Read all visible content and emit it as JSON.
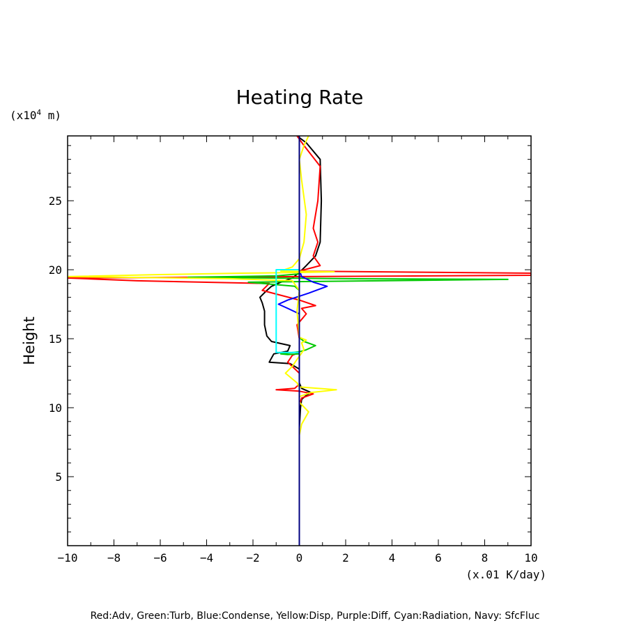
{
  "chart_data": {
    "type": "line",
    "title": "Heating Rate",
    "xlabel": "(x.01 K/day)",
    "ylabel": "Height",
    "yunit_prefix": "(x10",
    "yunit_exp": "4",
    "yunit_suffix": " m)",
    "xlim": [
      -10,
      10
    ],
    "ylim": [
      0,
      29.7
    ],
    "x_ticks": [
      -10,
      -8,
      -6,
      -4,
      -2,
      0,
      2,
      4,
      6,
      8,
      10
    ],
    "y_ticks": [
      5,
      10,
      15,
      20,
      25
    ],
    "x_tick_labels": [
      "−10",
      "−8",
      "−6",
      "−4",
      "−2",
      "0",
      "2",
      "4",
      "6",
      "8",
      "10"
    ],
    "y_tick_labels": [
      "5",
      "10",
      "15",
      "20",
      "25"
    ],
    "grid": false,
    "legend_text": "Red:Adv, Green:Turb, Blue:Condense, Yellow:Disp, Purple:Diff, Cyan:Radiation, Navy: SfcFluc",
    "series": [
      {
        "color": "#000000",
        "points": [
          [
            0,
            0
          ],
          [
            0,
            8.5
          ],
          [
            0.05,
            10
          ],
          [
            0.1,
            10.6
          ],
          [
            0.3,
            10.9
          ],
          [
            0.5,
            11.1
          ],
          [
            0.1,
            11.4
          ],
          [
            0,
            11.8
          ],
          [
            0,
            12.8
          ],
          [
            -0.4,
            13.2
          ],
          [
            -1.3,
            13.3
          ],
          [
            -1.1,
            13.9
          ],
          [
            -0.5,
            14.1
          ],
          [
            -0.4,
            14.5
          ],
          [
            -1.2,
            14.8
          ],
          [
            -1.4,
            15.2
          ],
          [
            -1.5,
            16
          ],
          [
            -1.5,
            17
          ],
          [
            -1.6,
            17.6
          ],
          [
            -1.7,
            18
          ],
          [
            -1.4,
            18.5
          ],
          [
            -1.2,
            18.8
          ],
          [
            -0.8,
            19.1
          ],
          [
            -0.3,
            19.4
          ],
          [
            0,
            19.8
          ],
          [
            0.3,
            20.3
          ],
          [
            0.7,
            21
          ],
          [
            0.9,
            22
          ],
          [
            0.95,
            25
          ],
          [
            0.9,
            28
          ],
          [
            0.3,
            29.2
          ],
          [
            -0.1,
            29.7
          ]
        ]
      },
      {
        "color": "#ff0000",
        "points": [
          [
            0,
            8.8
          ],
          [
            0,
            10.2
          ],
          [
            0.1,
            10.7
          ],
          [
            0.6,
            11.0
          ],
          [
            0,
            11.2
          ],
          [
            -1,
            11.3
          ],
          [
            -0.2,
            11.4
          ],
          [
            0,
            11.7
          ],
          [
            0,
            12.5
          ],
          [
            -0.5,
            13.3
          ],
          [
            -0.3,
            13.8
          ],
          [
            0,
            14
          ],
          [
            0,
            15
          ],
          [
            -0.1,
            16
          ],
          [
            0.3,
            16.8
          ],
          [
            0.1,
            17.2
          ],
          [
            0.7,
            17.4
          ],
          [
            0,
            17.8
          ],
          [
            -1.6,
            18.5
          ],
          [
            -1.3,
            19
          ],
          [
            -7,
            19.2
          ],
          [
            -10,
            19.4
          ],
          [
            0,
            19.5
          ],
          [
            10,
            19.6
          ],
          [
            10,
            19.75
          ],
          [
            0,
            19.9
          ],
          [
            0.9,
            20.3
          ],
          [
            0.6,
            21
          ],
          [
            0.8,
            22
          ],
          [
            0.6,
            23
          ],
          [
            0.8,
            25
          ],
          [
            0.9,
            27.5
          ],
          [
            0.2,
            29
          ],
          [
            -0.1,
            29.7
          ]
        ]
      },
      {
        "color": "#00c800",
        "points": [
          [
            0,
            13.9
          ],
          [
            -0.5,
            13.85
          ],
          [
            -0.8,
            13.9
          ],
          [
            0,
            14.05
          ],
          [
            0.3,
            14.2
          ],
          [
            0.7,
            14.5
          ],
          [
            0.2,
            14.8
          ],
          [
            0,
            15.1
          ],
          [
            0,
            18.5
          ],
          [
            -0.2,
            18.8
          ],
          [
            -2.2,
            19.1
          ],
          [
            3.5,
            19.2
          ],
          [
            9,
            19.3
          ],
          [
            2,
            19.35
          ],
          [
            -4.8,
            19.45
          ],
          [
            -1,
            19.55
          ],
          [
            0,
            19.7
          ],
          [
            0,
            20
          ]
        ]
      },
      {
        "color": "#0000ff",
        "points": [
          [
            0,
            0
          ],
          [
            0,
            16.8
          ],
          [
            -0.5,
            17.2
          ],
          [
            -0.9,
            17.5
          ],
          [
            -0.5,
            17.8
          ],
          [
            0.4,
            18.3
          ],
          [
            1.2,
            18.8
          ],
          [
            0.6,
            19.1
          ],
          [
            0.1,
            19.5
          ],
          [
            0,
            20
          ],
          [
            0,
            29.7
          ]
        ]
      },
      {
        "color": "#ffff00",
        "points": [
          [
            0,
            8
          ],
          [
            0.1,
            8.8
          ],
          [
            0.4,
            9.7
          ],
          [
            0,
            10.4
          ],
          [
            0,
            10.8
          ],
          [
            0.5,
            11.1
          ],
          [
            1.6,
            11.3
          ],
          [
            0,
            11.5
          ],
          [
            -0.1,
            11.8
          ],
          [
            -0.6,
            12.5
          ],
          [
            -0.3,
            13
          ],
          [
            -0.1,
            13.5
          ],
          [
            0.2,
            14.2
          ],
          [
            0.1,
            14.7
          ],
          [
            0.3,
            14.9
          ],
          [
            0,
            15.1
          ],
          [
            -0.1,
            17
          ],
          [
            0,
            18.5
          ],
          [
            -0.3,
            19.2
          ],
          [
            -3,
            19.35
          ],
          [
            -10,
            19.5
          ],
          [
            -6,
            19.65
          ],
          [
            -2.5,
            19.75
          ],
          [
            0,
            19.8
          ],
          [
            1.5,
            19.85
          ],
          [
            -0.8,
            19.9
          ],
          [
            -0.3,
            20.2
          ],
          [
            0,
            20.8
          ],
          [
            0.2,
            22
          ],
          [
            0.3,
            24
          ],
          [
            0.1,
            26.5
          ],
          [
            0,
            28
          ],
          [
            0.2,
            29
          ],
          [
            0.4,
            29.7
          ]
        ]
      },
      {
        "color": "#a020f0",
        "points": [
          [
            0,
            0
          ],
          [
            0,
            29.7
          ]
        ]
      },
      {
        "color": "#00ffff",
        "points": [
          [
            0,
            14
          ],
          [
            -1,
            14
          ],
          [
            -1,
            20
          ],
          [
            0,
            20
          ]
        ]
      },
      {
        "color": "#000080",
        "points": [
          [
            0,
            0
          ],
          [
            0,
            29.7
          ]
        ]
      }
    ]
  }
}
